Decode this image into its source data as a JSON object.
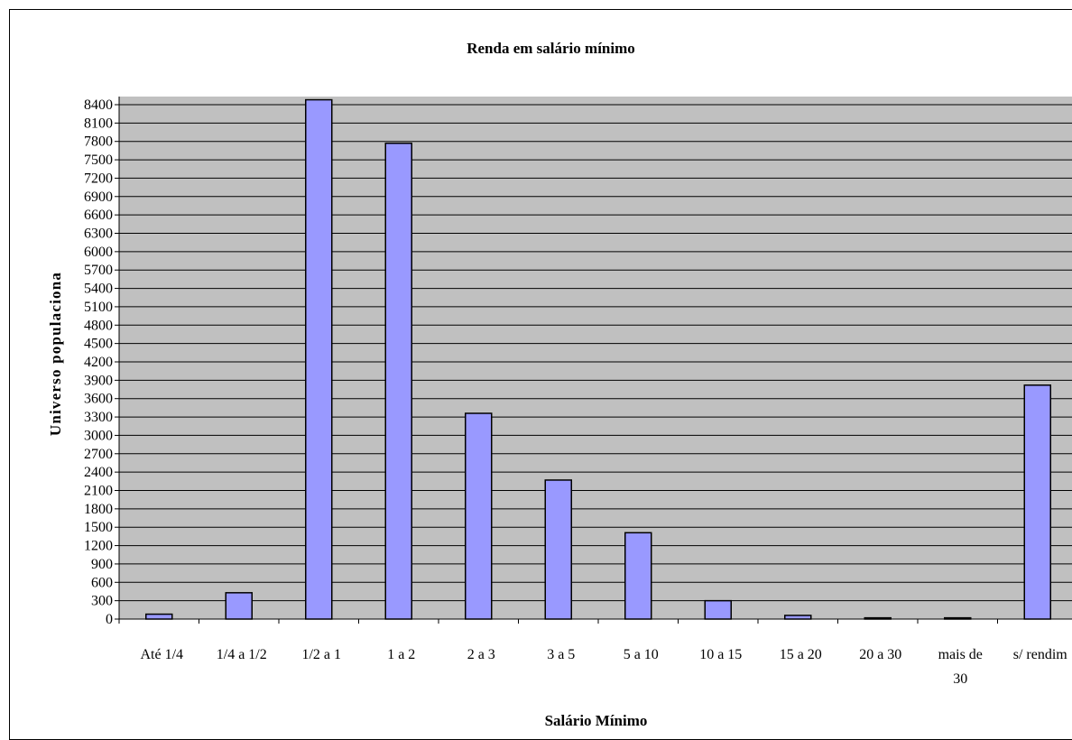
{
  "chart_data": {
    "type": "bar",
    "title": "Renda em salário mínimo",
    "xlabel": "Salário Mínimo",
    "ylabel": "Universo populaciona",
    "categories": [
      [
        "Até 1/4"
      ],
      [
        "1/4 a 1/2"
      ],
      [
        "1/2 a 1"
      ],
      [
        "1 a 2"
      ],
      [
        "2 a 3"
      ],
      [
        "3 a 5"
      ],
      [
        "5 a 10"
      ],
      [
        "10 a 15"
      ],
      [
        "15 a 20"
      ],
      [
        "20 a 30"
      ],
      [
        "mais de",
        "30"
      ],
      [
        "s/ rendim"
      ]
    ],
    "values": [
      80,
      430,
      8480,
      7770,
      3360,
      2270,
      1410,
      300,
      60,
      20,
      20,
      3820
    ],
    "ylim": [
      0,
      8400
    ],
    "ytick_step": 300,
    "ytick_labels": [
      "0",
      "300",
      "600",
      "900",
      "1200",
      "1500",
      "1800",
      "2100",
      "2400",
      "2700",
      "3000",
      "3300",
      "3600",
      "3900",
      "4200",
      "4500",
      "4800",
      "5100",
      "5400",
      "5700",
      "6000",
      "6300",
      "6600",
      "6900",
      "7200",
      "7500",
      "7800",
      "8100",
      "8400"
    ],
    "grid": true,
    "colors": {
      "bar_fill": "#9999ff",
      "plot_bg": "#c0c0c0",
      "grid": "#000000"
    }
  }
}
